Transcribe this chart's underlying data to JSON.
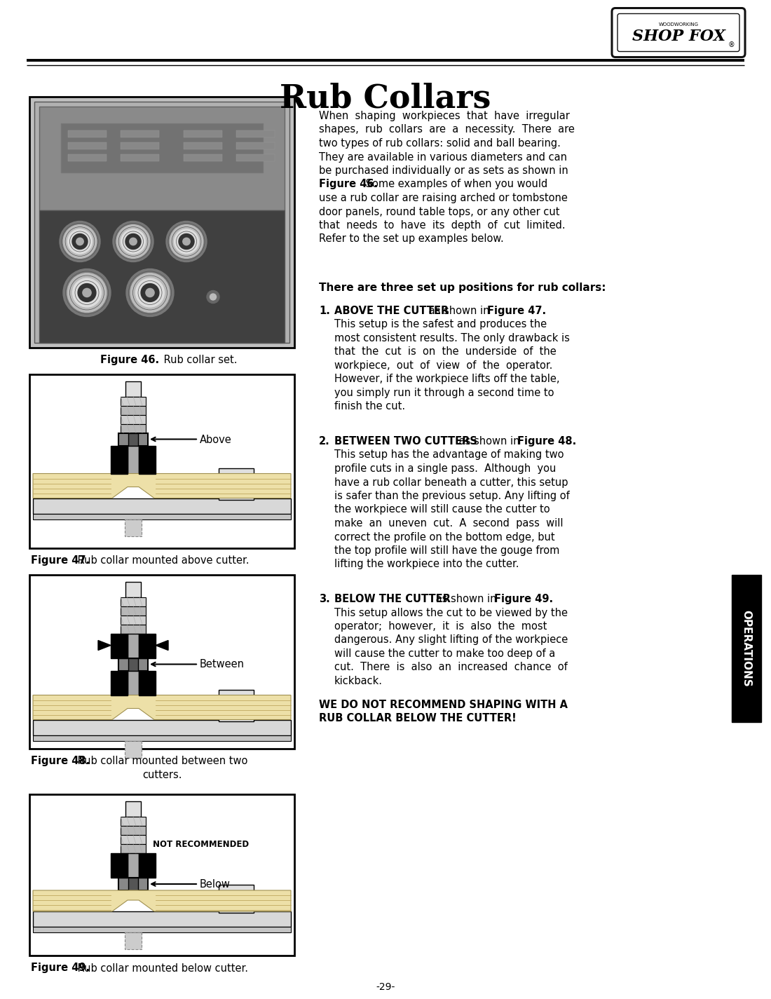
{
  "page_bg": "#ffffff",
  "page_width": 10.8,
  "page_height": 13.97,
  "title": "Rub Collars",
  "fig46_bold": "Figure 46.",
  "fig46_rest": " Rub collar set.",
  "fig47_bold": "Figure 47.",
  "fig47_rest": " Rub collar mounted above cutter.",
  "fig48_bold": "Figure 48.",
  "fig48_rest1": " Rub collar mounted between two",
  "fig48_rest2": "        cutters.",
  "fig49_bold": "Figure 49.",
  "fig49_rest": " Rub collar mounted below cutter.",
  "intro_lines": [
    [
      "normal",
      "When  shaping  workpieces  that  have  irregular"
    ],
    [
      "normal",
      "shapes,  rub  collars  are  a  necessity.  There  are"
    ],
    [
      "normal",
      "two types of rub collars: solid and ball bearing."
    ],
    [
      "normal",
      "They are available in various diameters and can"
    ],
    [
      "normal",
      "be purchased individually or as sets as shown in"
    ],
    [
      "bold_fig",
      "Figure 46.",
      " Some examples of when you would"
    ],
    [
      "normal",
      "use a rub collar are raising arched or tombstone"
    ],
    [
      "normal",
      "door panels, round table tops, or any other cut"
    ],
    [
      "normal",
      "that  needs  to  have  its  depth  of  cut  limited."
    ],
    [
      "normal",
      "Refer to the set up examples below."
    ]
  ],
  "three_positions": "There are three set up positions for rub collars:",
  "item1_bold": "ABOVE THE CUTTER",
  "item1_fig": "Figure 47.",
  "item1_body": [
    "This setup is the safest and produces the",
    "most consistent results. The only drawback is",
    "that  the  cut  is  on  the  underside  of  the",
    "workpiece,  out  of  view  of  the  operator.",
    "However, if the workpiece lifts off the table,",
    "you simply run it through a second time to",
    "finish the cut."
  ],
  "item2_bold": "BETWEEN TWO CUTTERS",
  "item2_fig": "Figure 48.",
  "item2_body": [
    "This setup has the advantage of making two",
    "profile cuts in a single pass.  Although  you",
    "have a rub collar beneath a cutter, this setup",
    "is safer than the previous setup. Any lifting of",
    "the workpiece will still cause the cutter to",
    "make  an  uneven  cut.  A  second  pass  will",
    "correct the profile on the bottom edge, but",
    "the top profile will still have the gouge from",
    "lifting the workpiece into the cutter."
  ],
  "item3_bold": "BELOW THE CUTTER",
  "item3_fig": "Figure 49.",
  "item3_body": [
    "This setup allows the cut to be viewed by the",
    "operator;  however,  it  is  also  the  most",
    "dangerous. Any slight lifting of the workpiece",
    "will cause the cutter to make too deep of a",
    "cut.  There  is  also  an  increased  chance  of",
    "kickback."
  ],
  "warning1": "WE DO NOT RECOMMEND SHAPING WITH A",
  "warning2": "RUB COLLAR BELOW THE CUTTER!",
  "page_number": "-29-",
  "operations_text": "OPERATIONS",
  "not_recommended": "NOT RECOMMENDED",
  "above_label": "Above",
  "between_label": "Between",
  "below_label": "Below"
}
